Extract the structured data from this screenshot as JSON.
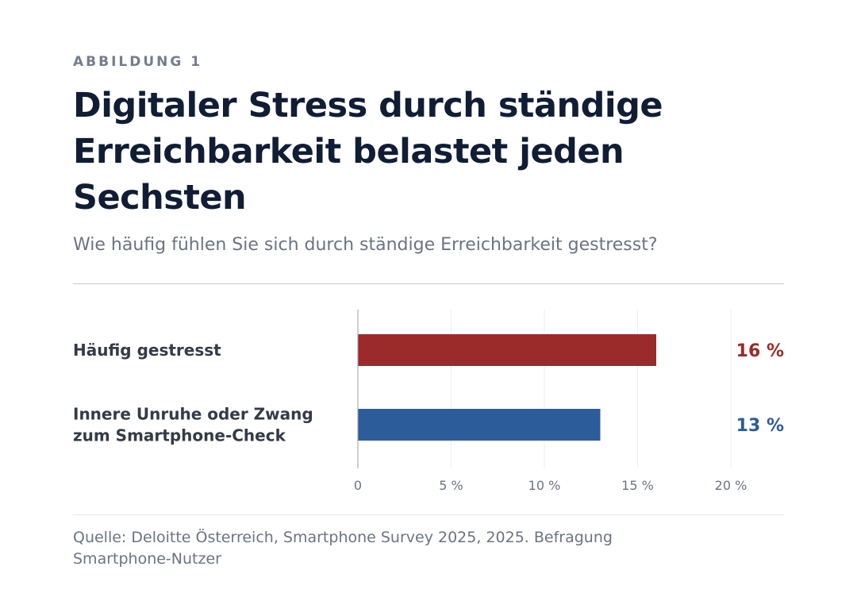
{
  "eyebrow": "ABBILDUNG 1",
  "subtitle": "Wie häufig fühlen Sie sich durch ständige Erreichbarkeit gestresst?",
  "source": "Quelle: Deloitte Österreich, Smartphone Survey 2025, 2025. Befragung Smartphone-Nutzer",
  "chart_data": {
    "type": "bar",
    "orientation": "horizontal",
    "title": "Digitaler Stress durch ständige Erreichbarkeit belastet jeden Sechsten",
    "categories": [
      [
        "Häufig gestresst"
      ],
      [
        "Innere Unruhe oder Zwang",
        "zum Smartphone-Check"
      ]
    ],
    "values": [
      16,
      13
    ],
    "value_labels": [
      "16 %",
      "13 %"
    ],
    "colors": [
      "#9b2a2a",
      "#2d5c9b"
    ],
    "xlim": [
      0,
      20
    ],
    "ticks": [
      0,
      5,
      10,
      15,
      20
    ],
    "tick_labels": [
      "0",
      "5 %",
      "10 %",
      "15 %",
      "20 %"
    ],
    "grid": true
  }
}
